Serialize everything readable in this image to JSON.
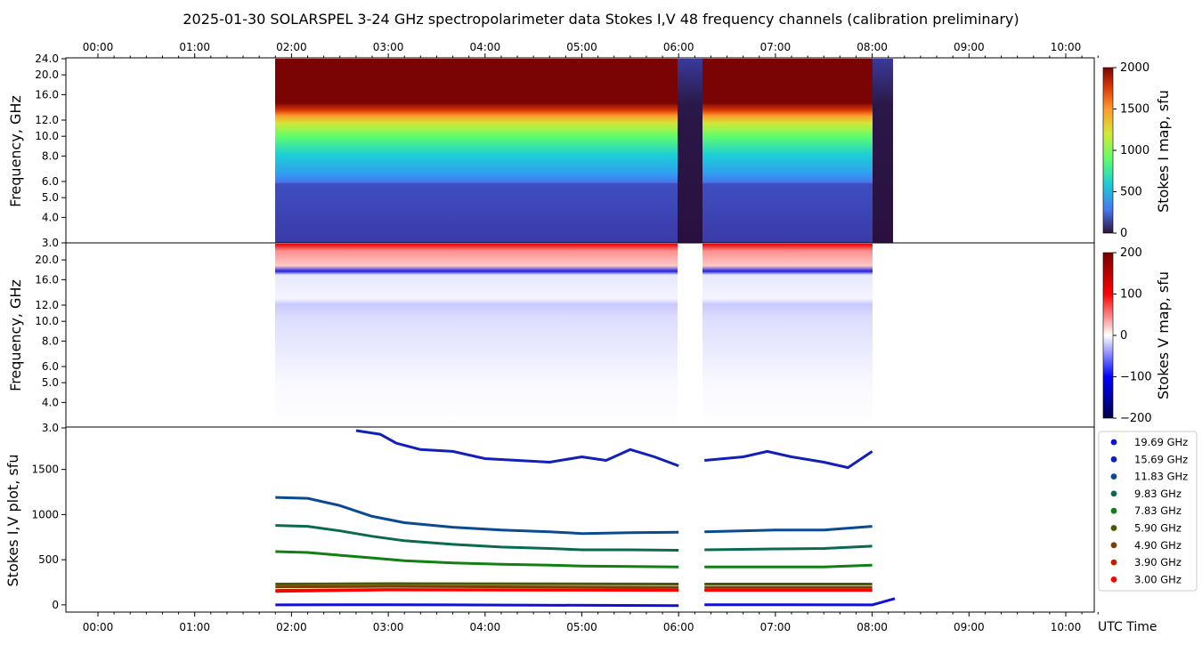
{
  "title": "2025-01-30  SOLARSPEL  3-24 GHz spectropolarimeter data   Stokes I,V   48 frequency channels   (calibration preliminary)",
  "colors": {
    "stokes_v_cmap": [
      "#00004a",
      "#0000ff",
      "#ffffff",
      "#ff0000",
      "#780000"
    ],
    "stokes_i_cmap": [
      "#30123b",
      "#4777ef",
      "#1bd0d5",
      "#62fc6b",
      "#d2e935",
      "#fe9b2d",
      "#db3a07",
      "#7a0403"
    ]
  },
  "chart_data": [
    {
      "type": "heatmap",
      "name": "Stokes I map",
      "ylabel": "Frequency, GHz",
      "colorbar_label": "Stokes I map, sfu",
      "colorbar_ticks": [
        "2000",
        "1500",
        "1000",
        "500",
        "0"
      ],
      "color_range": [
        0,
        2000
      ],
      "x_range": [
        "00:00",
        "10:20"
      ],
      "y_range": [
        3.0,
        24.0
      ],
      "y_scale": "log",
      "x_ticks": [
        "00:00",
        "01:00",
        "02:00",
        "03:00",
        "04:00",
        "05:00",
        "06:00",
        "07:00",
        "08:00",
        "09:00",
        "10:00"
      ],
      "y_ticks": [
        "24.0",
        "20.0",
        "16.0",
        "12.0",
        "10.0",
        "8.0",
        "6.0",
        "5.0",
        "4.0",
        "3.0"
      ],
      "data_start": "01:50",
      "data_end": "08:14",
      "gaps": [
        [
          "06:00",
          "06:16"
        ],
        [
          "08:01",
          "08:14"
        ]
      ],
      "profile_note": "saturated above ~15 GHz, ~1000 sfu near 10 GHz, ~300 sfu below 6 GHz"
    },
    {
      "type": "heatmap",
      "name": "Stokes V map",
      "ylabel": "Frequency, GHz",
      "colorbar_label": "Stokes V map, sfu",
      "colorbar_ticks": [
        "200",
        "100",
        "0",
        "−100",
        "−200"
      ],
      "color_range": [
        -200,
        200
      ],
      "y_ticks": [
        "20.0",
        "16.0",
        "12.0",
        "10.0",
        "8.0",
        "6.0",
        "5.0",
        "4.0",
        "3.0"
      ],
      "data_start": "01:50",
      "data_end": "08:14"
    },
    {
      "type": "scatter",
      "name": "Stokes I,V plot",
      "ylabel": "Stokes I,V plot, sfu",
      "xlabel": "UTC Time",
      "x_ticks": [
        "00:00",
        "01:00",
        "02:00",
        "03:00",
        "04:00",
        "05:00",
        "06:00",
        "07:00",
        "08:00",
        "09:00",
        "10:00"
      ],
      "y_ticks": [
        "1500",
        "1000",
        "500",
        "0"
      ],
      "ylim": [
        -80,
        1950
      ],
      "series": [
        {
          "name": "19.69 GHz",
          "color": "#1010d8",
          "points": [
            [
              "01:50",
              0
            ],
            [
              "03:00",
              2
            ],
            [
              "06:00",
              -8
            ],
            [
              "06:16",
              2
            ],
            [
              "08:00",
              0
            ],
            [
              "08:14",
              70
            ]
          ]
        },
        {
          "name": "15.69 GHz",
          "color": "#1020b8",
          "points": [
            [
              "02:40",
              1930
            ],
            [
              "02:55",
              1890
            ],
            [
              "03:05",
              1790
            ],
            [
              "03:20",
              1720
            ],
            [
              "03:40",
              1700
            ],
            [
              "04:00",
              1620
            ],
            [
              "04:20",
              1600
            ],
            [
              "04:40",
              1580
            ],
            [
              "05:00",
              1640
            ],
            [
              "05:15",
              1600
            ],
            [
              "05:30",
              1720
            ],
            [
              "05:45",
              1640
            ],
            [
              "06:00",
              1540
            ],
            [
              "06:16",
              1600
            ],
            [
              "06:40",
              1640
            ],
            [
              "06:55",
              1700
            ],
            [
              "07:10",
              1640
            ],
            [
              "07:30",
              1580
            ],
            [
              "07:45",
              1520
            ],
            [
              "08:00",
              1700
            ]
          ]
        },
        {
          "name": "11.83 GHz",
          "color": "#0a4a90",
          "points": [
            [
              "01:50",
              1190
            ],
            [
              "02:10",
              1180
            ],
            [
              "02:30",
              1100
            ],
            [
              "02:50",
              980
            ],
            [
              "03:10",
              910
            ],
            [
              "03:40",
              860
            ],
            [
              "04:10",
              830
            ],
            [
              "04:40",
              810
            ],
            [
              "05:00",
              790
            ],
            [
              "05:30",
              800
            ],
            [
              "06:00",
              805
            ],
            [
              "06:16",
              810
            ],
            [
              "07:00",
              830
            ],
            [
              "07:30",
              830
            ],
            [
              "08:00",
              870
            ]
          ]
        },
        {
          "name": "9.83 GHz",
          "color": "#0a6a50",
          "points": [
            [
              "01:50",
              880
            ],
            [
              "02:10",
              870
            ],
            [
              "02:30",
              820
            ],
            [
              "02:50",
              760
            ],
            [
              "03:10",
              710
            ],
            [
              "03:40",
              670
            ],
            [
              "04:10",
              640
            ],
            [
              "04:40",
              625
            ],
            [
              "05:00",
              610
            ],
            [
              "05:30",
              610
            ],
            [
              "06:00",
              605
            ],
            [
              "06:16",
              610
            ],
            [
              "07:00",
              620
            ],
            [
              "07:30",
              625
            ],
            [
              "08:00",
              650
            ]
          ]
        },
        {
          "name": "7.83 GHz",
          "color": "#108010",
          "points": [
            [
              "01:50",
              590
            ],
            [
              "02:10",
              580
            ],
            [
              "02:30",
              550
            ],
            [
              "02:50",
              520
            ],
            [
              "03:10",
              490
            ],
            [
              "03:40",
              465
            ],
            [
              "04:10",
              450
            ],
            [
              "04:40",
              440
            ],
            [
              "05:00",
              430
            ],
            [
              "05:30",
              425
            ],
            [
              "06:00",
              420
            ],
            [
              "06:16",
              420
            ],
            [
              "07:00",
              420
            ],
            [
              "07:30",
              420
            ],
            [
              "08:00",
              440
            ]
          ]
        },
        {
          "name": "5.90 GHz",
          "color": "#4a5a00",
          "points": [
            [
              "01:50",
              230
            ],
            [
              "03:00",
              235
            ],
            [
              "06:00",
              230
            ],
            [
              "06:16",
              230
            ],
            [
              "08:00",
              230
            ]
          ]
        },
        {
          "name": "4.90 GHz",
          "color": "#7a4000",
          "points": [
            [
              "01:50",
              200
            ],
            [
              "03:00",
              205
            ],
            [
              "06:00",
              195
            ],
            [
              "06:16",
              195
            ],
            [
              "08:00",
              195
            ]
          ]
        },
        {
          "name": "3.90 GHz",
          "color": "#c02000",
          "points": [
            [
              "01:50",
              160
            ],
            [
              "03:00",
              170
            ],
            [
              "06:00",
              165
            ],
            [
              "06:16",
              165
            ],
            [
              "08:00",
              165
            ]
          ]
        },
        {
          "name": "3.00 GHz",
          "color": "#ff0000",
          "points": [
            [
              "01:50",
              150
            ],
            [
              "03:00",
              165
            ],
            [
              "06:00",
              160
            ],
            [
              "06:16",
              160
            ],
            [
              "08:00",
              160
            ]
          ]
        }
      ]
    }
  ]
}
